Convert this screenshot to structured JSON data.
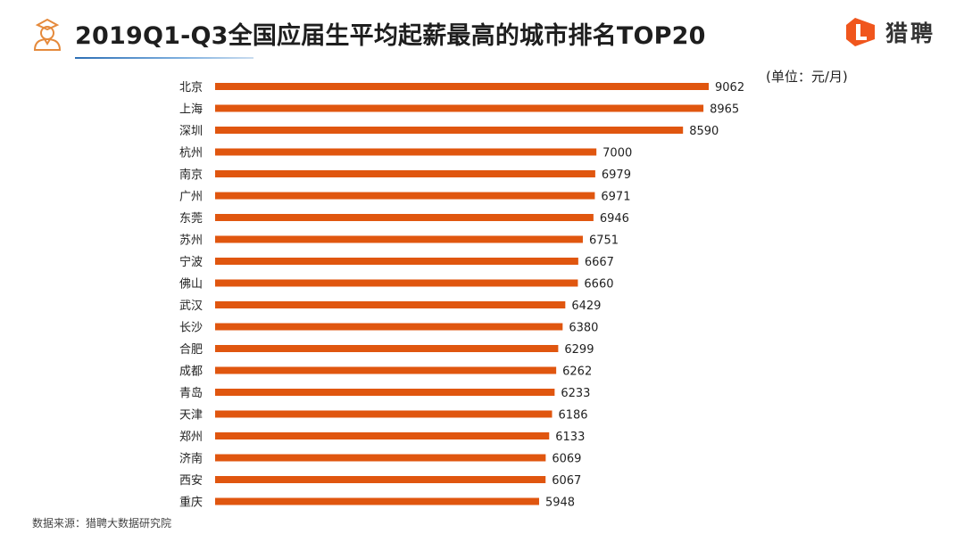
{
  "header": {
    "title": "2019Q1-Q3全国应届生平均起薪最高的城市排名TOP20",
    "logo_text": "猎聘",
    "unit": "(单位：元/月)"
  },
  "footer": {
    "source": "数据来源：猎聘大数据研究院"
  },
  "colors": {
    "bar": "#e0560f",
    "logo": "#f0561d",
    "icon": "#e58a3c"
  },
  "chart_data": {
    "type": "bar",
    "orientation": "horizontal",
    "title": "2019Q1-Q3全国应届生平均起薪最高的城市排名TOP20",
    "unit": "(单位：元/月)",
    "categories": [
      "北京",
      "上海",
      "深圳",
      "杭州",
      "南京",
      "广州",
      "东莞",
      "苏州",
      "宁波",
      "佛山",
      "武汉",
      "长沙",
      "合肥",
      "成都",
      "青岛",
      "天津",
      "郑州",
      "济南",
      "西安",
      "重庆"
    ],
    "values": [
      9062,
      8965,
      8590,
      7000,
      6979,
      6971,
      6946,
      6751,
      6667,
      6660,
      6429,
      6380,
      6299,
      6262,
      6233,
      6186,
      6133,
      6069,
      6067,
      5948
    ],
    "xlim": [
      0,
      9062
    ],
    "grid": false,
    "legend": "none",
    "data_labels": true
  }
}
